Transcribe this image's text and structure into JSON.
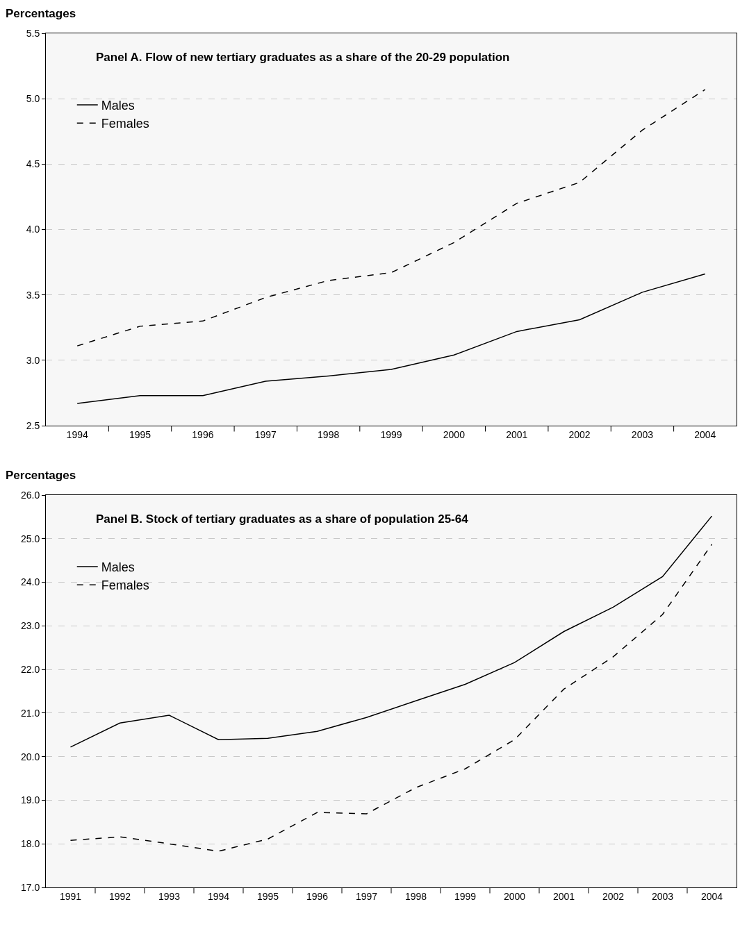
{
  "chart_data": [
    {
      "type": "line",
      "title": "Panel A. Flow of new tertiary graduates as a share of the 20-29 population",
      "ylabel": "Percentages",
      "categories": [
        "1994",
        "1995",
        "1996",
        "1997",
        "1998",
        "1999",
        "2000",
        "2001",
        "2002",
        "2003",
        "2004"
      ],
      "ylim": [
        2.5,
        5.5
      ],
      "yticks": [
        {
          "value": 2.5,
          "label": "2.5"
        },
        {
          "value": 3,
          "label": "3.0"
        },
        {
          "value": 3.5,
          "label": "3.5"
        },
        {
          "value": 4,
          "label": "4.0"
        },
        {
          "value": 4.5,
          "label": "4.5"
        },
        {
          "value": 5,
          "label": "5.0"
        },
        {
          "value": 5.5,
          "label": "5.5"
        }
      ],
      "grid": "y",
      "legend": "top left",
      "marker": "none",
      "series": [
        {
          "name": "Males",
          "color": "#000000",
          "line_style": "solid",
          "values": [
            2.67,
            2.73,
            2.73,
            2.84,
            2.88,
            2.93,
            3.04,
            3.22,
            3.31,
            3.52,
            3.66
          ]
        },
        {
          "name": "Females",
          "color": "#000000",
          "line_style": "dashed",
          "values": [
            3.11,
            3.26,
            3.3,
            3.48,
            3.61,
            3.67,
            3.9,
            4.2,
            4.36,
            4.76,
            5.07
          ]
        }
      ]
    },
    {
      "type": "line",
      "title": "Panel B. Stock of tertiary graduates as a share of population 25-64",
      "ylabel": "Percentages",
      "categories": [
        "1991",
        "1992",
        "1993",
        "1994",
        "1995",
        "1996",
        "1997",
        "1998",
        "1999",
        "2000",
        "2001",
        "2002",
        "2003",
        "2004"
      ],
      "ylim": [
        17,
        26
      ],
      "yticks": [
        {
          "value": 17,
          "label": "17.0"
        },
        {
          "value": 18,
          "label": "18.0"
        },
        {
          "value": 19,
          "label": "19.0"
        },
        {
          "value": 20,
          "label": "20.0"
        },
        {
          "value": 21,
          "label": "21.0"
        },
        {
          "value": 22,
          "label": "22.0"
        },
        {
          "value": 23,
          "label": "23.0"
        },
        {
          "value": 24,
          "label": "24.0"
        },
        {
          "value": 25,
          "label": "25.0"
        },
        {
          "value": 26,
          "label": "26.0"
        }
      ],
      "grid": "y",
      "legend": "top left",
      "marker": "none",
      "series": [
        {
          "name": "Males",
          "color": "#000000",
          "line_style": "solid",
          "values": [
            20.22,
            20.77,
            20.95,
            20.39,
            20.42,
            20.58,
            20.9,
            21.28,
            21.66,
            22.16,
            22.87,
            23.43,
            24.13,
            25.52
          ]
        },
        {
          "name": "Females",
          "color": "#000000",
          "line_style": "dashed",
          "values": [
            18.08,
            18.16,
            18.0,
            17.83,
            18.11,
            18.72,
            18.69,
            19.29,
            19.72,
            20.39,
            21.55,
            22.29,
            23.26,
            24.87
          ]
        }
      ]
    }
  ]
}
